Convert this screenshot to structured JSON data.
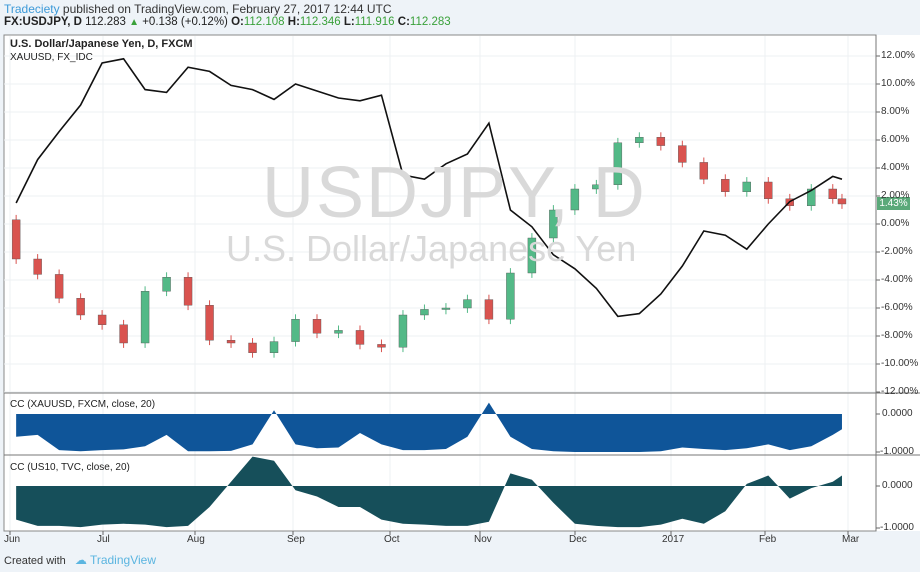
{
  "header": {
    "author": "Tradeciety",
    "published_text": " published on TradingView.com, February 27, 2017 12:44 UTC",
    "symbol": "FX:USDJPY, D",
    "last": "112.283",
    "change": "+0.138 (+0.12%)",
    "o_label": "O:",
    "o": "112.108",
    "h_label": "H:",
    "h": "112.346",
    "l_label": "L:",
    "l": "111.916",
    "c_label": "C:",
    "c": "112.283"
  },
  "main_pane": {
    "title": "U.S. Dollar/Japanese Yen, D, FXCM",
    "overlay": "XAUUSD, FX_IDC",
    "watermark_symbol": "USDJPY, D",
    "watermark_name": "U.S. Dollar/Japanese Yen",
    "price_tag": "1.43%",
    "y_ticks": [
      "12.00%",
      "10.00%",
      "8.00%",
      "6.00%",
      "4.00%",
      "2.00%",
      "0.00%",
      "-2.00%",
      "-4.00%",
      "-6.00%",
      "-8.00%",
      "-10.00%",
      "-12.00%"
    ]
  },
  "pane1": {
    "title": "CC (XAUUSD, FXCM, close, 20)",
    "ticks": [
      "0.0000",
      "-1.0000"
    ]
  },
  "pane2": {
    "title": "CC (US10, TVC, close, 20)",
    "ticks": [
      "0.0000",
      "-1.0000"
    ]
  },
  "x_ticks": [
    "Jun",
    "Jul",
    "Aug",
    "Sep",
    "Oct",
    "Nov",
    "Dec",
    "2017",
    "Feb",
    "Mar"
  ],
  "footer": {
    "created": "Created with",
    "brand": "TradingView"
  },
  "colors": {
    "up": "#53b987",
    "down": "#d9534f",
    "cc1": "#0f5599",
    "cc2": "#164f5a",
    "line": "#111111",
    "tag": "#5aa979"
  },
  "chart_data": [
    {
      "type": "candlestick",
      "dates": [
        "2016-06-03",
        "2016-06-10",
        "2016-06-17",
        "2016-06-24",
        "2016-07-01",
        "2016-07-08",
        "2016-07-15",
        "2016-07-22",
        "2016-07-29",
        "2016-08-05",
        "2016-08-12",
        "2016-08-19",
        "2016-08-26",
        "2016-09-02",
        "2016-09-09",
        "2016-09-16",
        "2016-09-23",
        "2016-09-30",
        "2016-10-07",
        "2016-10-14",
        "2016-10-21",
        "2016-10-28",
        "2016-11-04",
        "2016-11-11",
        "2016-11-18",
        "2016-11-25",
        "2016-12-02",
        "2016-12-09",
        "2016-12-16",
        "2016-12-23",
        "2016-12-30",
        "2017-01-06",
        "2017-01-13",
        "2017-01-20",
        "2017-01-27",
        "2017-02-03",
        "2017-02-10",
        "2017-02-17",
        "2017-02-24",
        "2017-02-27"
      ],
      "close": [
        -2.5,
        -3.6,
        -5.3,
        -6.5,
        -7.2,
        -8.5,
        -4.8,
        -3.8,
        -5.8,
        -8.3,
        -8.5,
        -9.2,
        -8.4,
        -6.8,
        -7.8,
        -7.6,
        -8.6,
        -8.8,
        -6.5,
        -6.1,
        -6.0,
        -5.4,
        -6.8,
        -3.5,
        -1.0,
        1.0,
        2.5,
        2.8,
        5.8,
        6.2,
        5.6,
        4.4,
        3.2,
        2.3,
        3.0,
        1.8,
        1.3,
        2.5,
        1.8,
        1.43
      ],
      "first_open": 0.3,
      "ylim": [
        -12,
        12
      ]
    },
    {
      "type": "line",
      "values": [
        1.5,
        4.6,
        6.6,
        8.5,
        11.5,
        11.8,
        9.6,
        9.4,
        11.2,
        10.9,
        9.9,
        9.6,
        8.9,
        10.0,
        9.5,
        9.0,
        8.8,
        9.2,
        3.5,
        3.2,
        4.3,
        5.0,
        7.2,
        1.0,
        -0.2,
        -2.2,
        -3.2,
        -4.6,
        -6.6,
        -6.4,
        -5.0,
        -3.0,
        -0.5,
        -0.8,
        -1.8,
        0.0,
        1.6,
        2.4,
        3.4,
        3.2
      ]
    },
    {
      "type": "area",
      "values": [
        -0.6,
        -0.55,
        -0.95,
        -0.98,
        -0.95,
        -0.93,
        -0.85,
        -0.55,
        -0.98,
        -0.98,
        -0.97,
        -0.8,
        0.1,
        -0.8,
        -0.9,
        -0.88,
        -0.5,
        -0.8,
        -0.95,
        -0.95,
        -0.92,
        -0.6,
        0.3,
        -0.6,
        -0.92,
        -0.98,
        -1.0,
        -1.0,
        -1.0,
        -1.0,
        -0.98,
        -0.88,
        -0.92,
        -0.95,
        -0.9,
        -0.8,
        -0.95,
        -0.85,
        -0.55,
        -0.4
      ]
    },
    {
      "type": "area",
      "values": [
        -0.8,
        -0.95,
        -0.95,
        -0.98,
        -0.92,
        -0.9,
        -0.92,
        -0.98,
        -0.95,
        -0.5,
        0.1,
        0.7,
        0.6,
        -0.1,
        -0.25,
        -0.5,
        -0.5,
        -0.8,
        -0.9,
        -0.92,
        -0.95,
        -0.95,
        -0.85,
        0.3,
        0.15,
        -0.4,
        -0.9,
        -0.95,
        -0.98,
        -0.98,
        -0.92,
        -0.78,
        -0.9,
        -0.6,
        0.05,
        0.25,
        -0.3,
        -0.05,
        0.1,
        0.25
      ]
    }
  ]
}
